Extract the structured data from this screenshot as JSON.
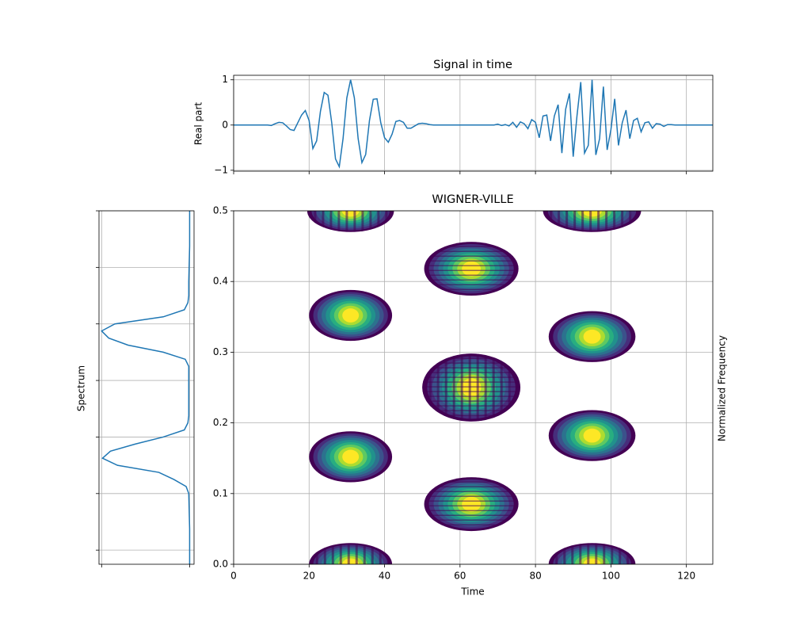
{
  "chart_data": [
    {
      "type": "line",
      "title": "Signal in time",
      "ylabel": "Real part",
      "x": [
        0,
        1,
        2,
        3,
        4,
        5,
        6,
        7,
        8,
        9,
        10,
        11,
        12,
        13,
        14,
        15,
        16,
        17,
        18,
        19,
        20,
        21,
        22,
        23,
        24,
        25,
        26,
        27,
        28,
        29,
        30,
        31,
        32,
        33,
        34,
        35,
        36,
        37,
        38,
        39,
        40,
        41,
        42,
        43,
        44,
        45,
        46,
        47,
        48,
        49,
        50,
        51,
        52,
        53,
        54,
        55,
        56,
        57,
        58,
        59,
        60,
        61,
        62,
        63,
        64,
        65,
        66,
        67,
        68,
        69,
        70,
        71,
        72,
        73,
        74,
        75,
        76,
        77,
        78,
        79,
        80,
        81,
        82,
        83,
        84,
        85,
        86,
        87,
        88,
        89,
        90,
        91,
        92,
        93,
        94,
        95,
        96,
        97,
        98,
        99,
        100,
        101,
        102,
        103,
        104,
        105,
        106,
        107,
        108,
        109,
        110,
        111,
        112,
        113,
        114,
        115,
        116,
        117,
        118,
        119,
        120,
        121,
        122,
        123,
        124,
        125,
        126,
        127
      ],
      "values": [
        0,
        0,
        0,
        0,
        0,
        0,
        0,
        0,
        0,
        0,
        -0.01,
        0.03,
        0.06,
        0.05,
        -0.02,
        -0.1,
        -0.12,
        0.05,
        0.22,
        0.32,
        0.1,
        -0.52,
        -0.35,
        0.3,
        0.72,
        0.66,
        0.05,
        -0.75,
        -0.92,
        -0.3,
        0.6,
        1.0,
        0.6,
        -0.3,
        -0.83,
        -0.65,
        0.1,
        0.57,
        0.58,
        0.05,
        -0.28,
        -0.38,
        -0.2,
        0.08,
        0.1,
        0.06,
        -0.07,
        -0.07,
        -0.02,
        0.03,
        0.04,
        0.03,
        0.01,
        0,
        0,
        0,
        0,
        0,
        0,
        0,
        0,
        0,
        0,
        0,
        0,
        0,
        0,
        0,
        0,
        0,
        0.02,
        -0.01,
        0.01,
        -0.02,
        0.06,
        -0.05,
        0.07,
        0.03,
        -0.08,
        0.12,
        0.06,
        -0.28,
        0.2,
        0.22,
        -0.35,
        0.2,
        0.45,
        -0.62,
        0.35,
        0.7,
        -0.7,
        0.2,
        0.95,
        -0.62,
        -0.45,
        1.0,
        -0.66,
        -0.3,
        0.85,
        -0.55,
        -0.1,
        0.58,
        -0.45,
        0.05,
        0.33,
        -0.3,
        0.1,
        0.15,
        -0.15,
        0.05,
        0.07,
        -0.07,
        0.03,
        0.02,
        -0.03,
        0.01,
        0.01,
        0,
        0,
        0,
        0,
        0,
        0,
        0,
        0,
        0,
        0,
        0
      ],
      "color": "#1f77b4",
      "xlim": [
        0,
        127
      ],
      "ylim": [
        -1.02,
        1.1
      ],
      "xticks": [
        0,
        20,
        40,
        60,
        80,
        100,
        120
      ],
      "yticks": [
        {
          "value": -1,
          "label": "−1"
        },
        0,
        1
      ],
      "xticklabels": false,
      "yticklabels": true,
      "grid": true
    },
    {
      "type": "line",
      "orientation": "horizontal",
      "ylabel": "Spectrum",
      "x": [
        0,
        0.05,
        0.1,
        0.11,
        0.12,
        0.13,
        0.14,
        0.15,
        0.16,
        0.17,
        0.18,
        0.19,
        0.2,
        0.21,
        0.25,
        0.28,
        0.29,
        0.3,
        0.31,
        0.32,
        0.33,
        0.34,
        0.35,
        0.36,
        0.37,
        0.38,
        0.4,
        0.45,
        0.5
      ],
      "values": [
        0,
        0,
        0.01,
        0.04,
        0.18,
        0.35,
        0.82,
        0.99,
        0.9,
        0.62,
        0.3,
        0.06,
        0.02,
        0.01,
        0.01,
        0.01,
        0.05,
        0.3,
        0.7,
        0.92,
        1.0,
        0.85,
        0.3,
        0.06,
        0.02,
        0.01,
        0.01,
        0,
        0
      ],
      "color": "#1f77b4",
      "xlim": [
        1.03,
        -0.05
      ],
      "ylim": [
        0,
        0.5
      ],
      "xticks": [
        1,
        0
      ],
      "yticks": [
        0.02,
        0.1,
        0.18,
        0.26,
        0.34,
        0.42,
        0.5
      ],
      "xticklabels": false,
      "yticklabels": false,
      "grid": true
    },
    {
      "type": "contour",
      "title": "WIGNER-VILLE",
      "xlabel": "Time",
      "ylabel": "Normalized Frequency",
      "xlim": [
        0,
        127
      ],
      "ylim": [
        0,
        0.5
      ],
      "xticks": [
        0,
        20,
        40,
        60,
        80,
        100,
        120
      ],
      "yticks": [
        {
          "value": 0,
          "label": "0.0"
        },
        {
          "value": 0.1,
          "label": "0.1"
        },
        {
          "value": 0.2,
          "label": "0.2"
        },
        {
          "value": 0.3,
          "label": "0.3"
        },
        {
          "value": 0.4,
          "label": "0.4"
        },
        {
          "value": 0.5,
          "label": "0.5"
        }
      ],
      "xticklabels": true,
      "yticklabels": true,
      "grid": true,
      "colormap": [
        "#440154",
        "#472d7b",
        "#3b528b",
        "#2c728e",
        "#21918c",
        "#28ae80",
        "#5ec962",
        "#addc30",
        "#fde725"
      ],
      "blobs": [
        {
          "t": 31,
          "f": 0.352,
          "dt": 11,
          "df": 0.036,
          "pattern": "none"
        },
        {
          "t": 31,
          "f": 0.152,
          "dt": 11,
          "df": 0.036,
          "pattern": "none"
        },
        {
          "t": 95,
          "f": 0.322,
          "dt": 11.5,
          "df": 0.036,
          "pattern": "none"
        },
        {
          "t": 95,
          "f": 0.182,
          "dt": 11.5,
          "df": 0.036,
          "pattern": "none"
        },
        {
          "t": 63,
          "f": 0.418,
          "dt": 12.5,
          "df": 0.038,
          "pattern": "horizontal"
        },
        {
          "t": 63,
          "f": 0.085,
          "dt": 12.5,
          "df": 0.038,
          "pattern": "horizontal"
        },
        {
          "t": 63,
          "f": 0.25,
          "dt": 13,
          "df": 0.048,
          "pattern": "checker"
        },
        {
          "t": 31,
          "f": 0.5,
          "dt": 11.5,
          "df": 0.03,
          "pattern": "vertical"
        },
        {
          "t": 95,
          "f": 0.5,
          "dt": 13,
          "df": 0.03,
          "pattern": "vertical"
        },
        {
          "t": 31,
          "f": 0,
          "dt": 11,
          "df": 0.03,
          "pattern": "vertical"
        },
        {
          "t": 95,
          "f": 0,
          "dt": 11.5,
          "df": 0.03,
          "pattern": "vertical"
        }
      ]
    }
  ]
}
